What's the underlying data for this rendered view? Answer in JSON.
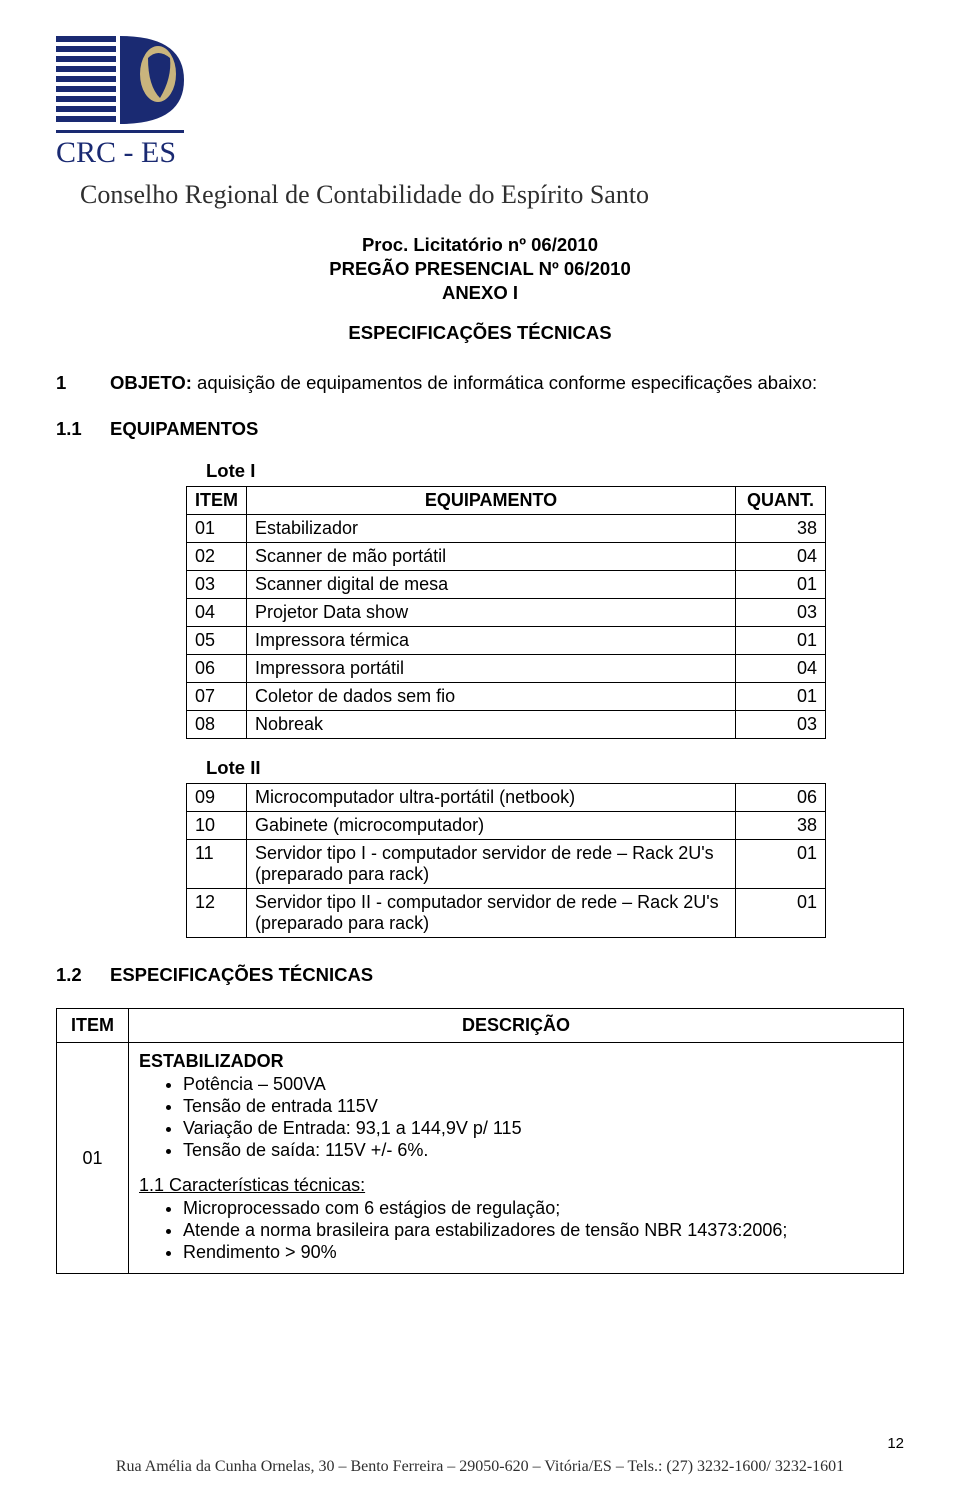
{
  "colors": {
    "logo_blue": "#1a2a72",
    "text_dark": "#2f2f2f"
  },
  "logo": {
    "line1": "CRC - ES"
  },
  "org_title": "Conselho Regional de Contabilidade do Espírito Santo",
  "header": {
    "line1": "Proc. Licitatório nº 06/2010",
    "line2": "PREGÃO PRESENCIAL Nº 06/2010",
    "line3": "ANEXO I",
    "spec_title": "ESPECIFICAÇÕES TÉCNICAS"
  },
  "objeto": {
    "num": "1",
    "label": "OBJETO:",
    "text": " aquisição de equipamentos de informática conforme especificações abaixo:"
  },
  "sec_equip": {
    "num": "1.1",
    "label": "EQUIPAMENTOS"
  },
  "lote1": {
    "label": "Lote I",
    "headers": {
      "item": "ITEM",
      "equip": "EQUIPAMENTO",
      "quant": "QUANT."
    },
    "rows": [
      {
        "item": "01",
        "equip": "Estabilizador",
        "quant": "38"
      },
      {
        "item": "02",
        "equip": "Scanner de mão portátil",
        "quant": "04"
      },
      {
        "item": "03",
        "equip": "Scanner digital de mesa",
        "quant": "01"
      },
      {
        "item": "04",
        "equip": "Projetor Data show",
        "quant": "03"
      },
      {
        "item": "05",
        "equip": "Impressora térmica",
        "quant": "01"
      },
      {
        "item": "06",
        "equip": "Impressora portátil",
        "quant": "04"
      },
      {
        "item": "07",
        "equip": "Coletor de dados sem fio",
        "quant": "01"
      },
      {
        "item": "08",
        "equip": "Nobreak",
        "quant": "03"
      }
    ]
  },
  "lote2": {
    "label": "Lote II",
    "rows": [
      {
        "item": "09",
        "equip": "Microcomputador ultra-portátil (netbook)",
        "quant": "06"
      },
      {
        "item": "10",
        "equip": "Gabinete (microcomputador)",
        "quant": "38"
      },
      {
        "item": "11",
        "equip": "Servidor tipo I - computador servidor de rede – Rack 2U's (preparado para rack)",
        "quant": "01"
      },
      {
        "item": "12",
        "equip": "Servidor tipo II - computador servidor de rede – Rack 2U's (preparado para rack)",
        "quant": "01"
      }
    ]
  },
  "sec_spec": {
    "num": "1.2",
    "label": "ESPECIFICAÇÕES TÉCNICAS"
  },
  "desc_table": {
    "headers": {
      "item": "ITEM",
      "desc": "DESCRIÇÃO"
    },
    "row": {
      "item": "01",
      "title": "ESTABILIZADOR",
      "bullets1": [
        "Potência – 500VA",
        "Tensão de entrada 115V",
        "Variação de Entrada: 93,1 a 144,9V p/ 115",
        "Tensão de saída: 115V +/- 6%."
      ],
      "subhead": "1.1 Características técnicas:",
      "bullets2": [
        "Microprocessado com 6 estágios de regulação;",
        "Atende a norma brasileira para estabilizadores de tensão NBR 14373:2006;",
        "Rendimento > 90%"
      ]
    }
  },
  "footer": "Rua Amélia da Cunha Ornelas, 30 – Bento Ferreira – 29050-620 – Vitória/ES – Tels.: (27) 3232-1600/ 3232-1601",
  "pagenum": "12"
}
